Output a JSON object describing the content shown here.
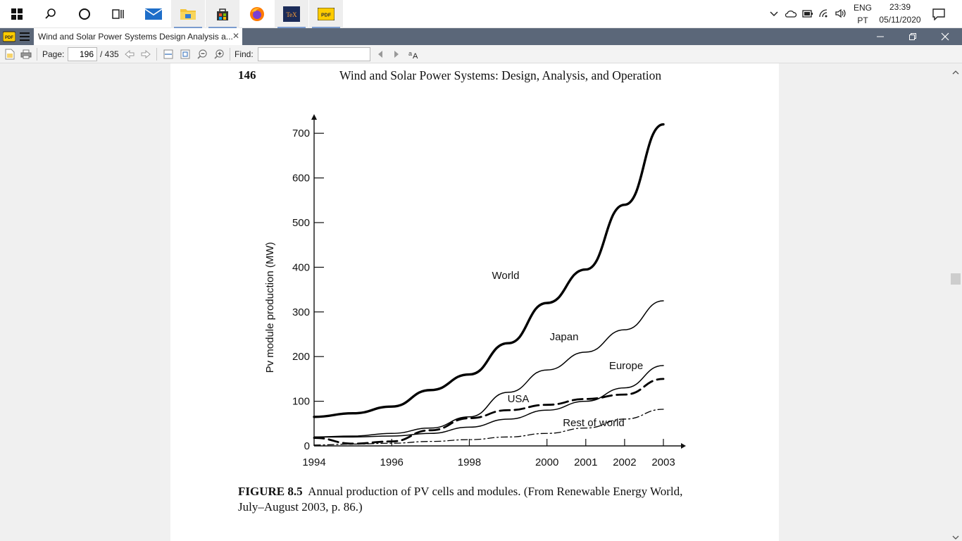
{
  "taskbar": {
    "apps": [
      "start",
      "search",
      "cortana",
      "task-view",
      "mail",
      "file-explorer",
      "store",
      "firefox",
      "tex",
      "pdf-reader"
    ],
    "tray": {
      "language_top": "ENG",
      "language_bottom": "PT",
      "time": "23:39",
      "date": "05/11/2020"
    }
  },
  "window": {
    "tab_title": "Wind and Solar Power Systems Design Analysis a...",
    "close_tab": "✕"
  },
  "toolbar": {
    "page_label": "Page:",
    "page_value": "196",
    "page_total": "/ 435",
    "find_label": "Find:",
    "find_value": ""
  },
  "document": {
    "page_number": "146",
    "running_head": "Wind and Solar Power Systems: Design, Analysis, and Operation",
    "caption_label": "FIGURE 8.5",
    "caption_line1": "Annual production of PV cells and modules. (From Renewable Energy World,",
    "caption_line2": "July–August 2003, p. 86.)"
  },
  "chart_data": {
    "type": "line",
    "title": "",
    "xlabel": "",
    "ylabel": "Pv module production (MW)",
    "x": [
      1994,
      1995,
      1996,
      1997,
      1998,
      1999,
      2000,
      2001,
      2002,
      2003
    ],
    "x_tick_labels": [
      "1994",
      "1996",
      "1998",
      "2000",
      "2001",
      "2002",
      "2003"
    ],
    "y_tick_labels": [
      "0",
      "100",
      "200",
      "300",
      "400",
      "500",
      "600",
      "700"
    ],
    "ylim": [
      0,
      720
    ],
    "grid": false,
    "legend": "inline labels",
    "series": [
      {
        "name": "World",
        "style": "thick",
        "values": [
          65,
          73,
          88,
          125,
          160,
          230,
          320,
          395,
          540,
          720
        ]
      },
      {
        "name": "Japan",
        "style": "thin",
        "values": [
          20,
          22,
          28,
          40,
          65,
          120,
          170,
          210,
          260,
          325
        ]
      },
      {
        "name": "Europe",
        "style": "thin",
        "values": [
          20,
          20,
          22,
          28,
          42,
          60,
          80,
          100,
          130,
          180
        ]
      },
      {
        "name": "USA",
        "style": "dashed",
        "values": [
          18,
          5,
          10,
          35,
          62,
          80,
          92,
          105,
          115,
          150
        ]
      },
      {
        "name": "Rest of world",
        "style": "dashdot",
        "values": [
          2,
          4,
          6,
          10,
          14,
          20,
          28,
          40,
          60,
          82
        ]
      }
    ]
  }
}
